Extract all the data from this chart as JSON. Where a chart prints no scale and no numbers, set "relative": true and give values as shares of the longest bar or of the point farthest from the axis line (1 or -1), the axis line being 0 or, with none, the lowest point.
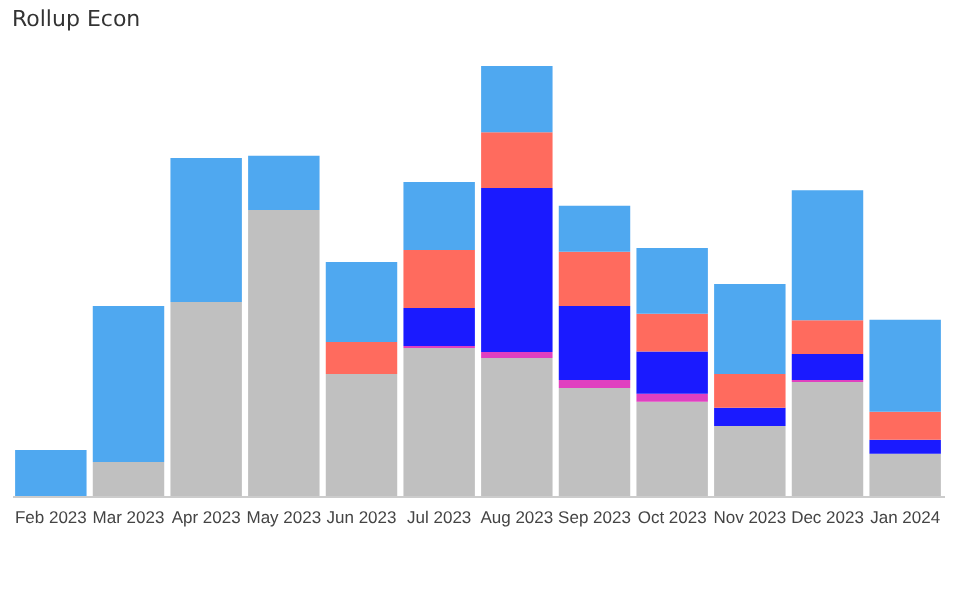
{
  "chart_data": {
    "type": "bar",
    "title": "Rollup Econ",
    "stacked": true,
    "relative": true,
    "legend": false,
    "categories": [
      "Feb 2023",
      "Mar 2023",
      "Apr 2023",
      "May 2023",
      "Jun 2023",
      "Jul 2023",
      "Aug 2023",
      "Sep 2023",
      "Oct 2023",
      "Nov 2023",
      "Dec 2023",
      "Jan 2024"
    ],
    "series": [
      {
        "color": "#c0c0c0",
        "values": [
          0,
          0.079,
          0.451,
          0.665,
          0.284,
          0.344,
          0.321,
          0.251,
          0.219,
          0.163,
          0.265,
          0.098
        ]
      },
      {
        "color": "#e040c0",
        "values": [
          0,
          0,
          0,
          0,
          0,
          0.005,
          0.014,
          0.019,
          0.019,
          0,
          0.005,
          0
        ]
      },
      {
        "color": "#1a1aff",
        "values": [
          0,
          0,
          0,
          0,
          0,
          0.088,
          0.381,
          0.172,
          0.098,
          0.042,
          0.06,
          0.033
        ]
      },
      {
        "color": "#ff6b5e",
        "values": [
          0,
          0,
          0,
          0,
          0.074,
          0.135,
          0.13,
          0.126,
          0.088,
          0.079,
          0.079,
          0.065
        ]
      },
      {
        "color": "#4fa8f0",
        "values": [
          0.107,
          0.363,
          0.335,
          0.126,
          0.186,
          0.158,
          0.154,
          0.107,
          0.153,
          0.209,
          0.302,
          0.214
        ]
      }
    ]
  }
}
